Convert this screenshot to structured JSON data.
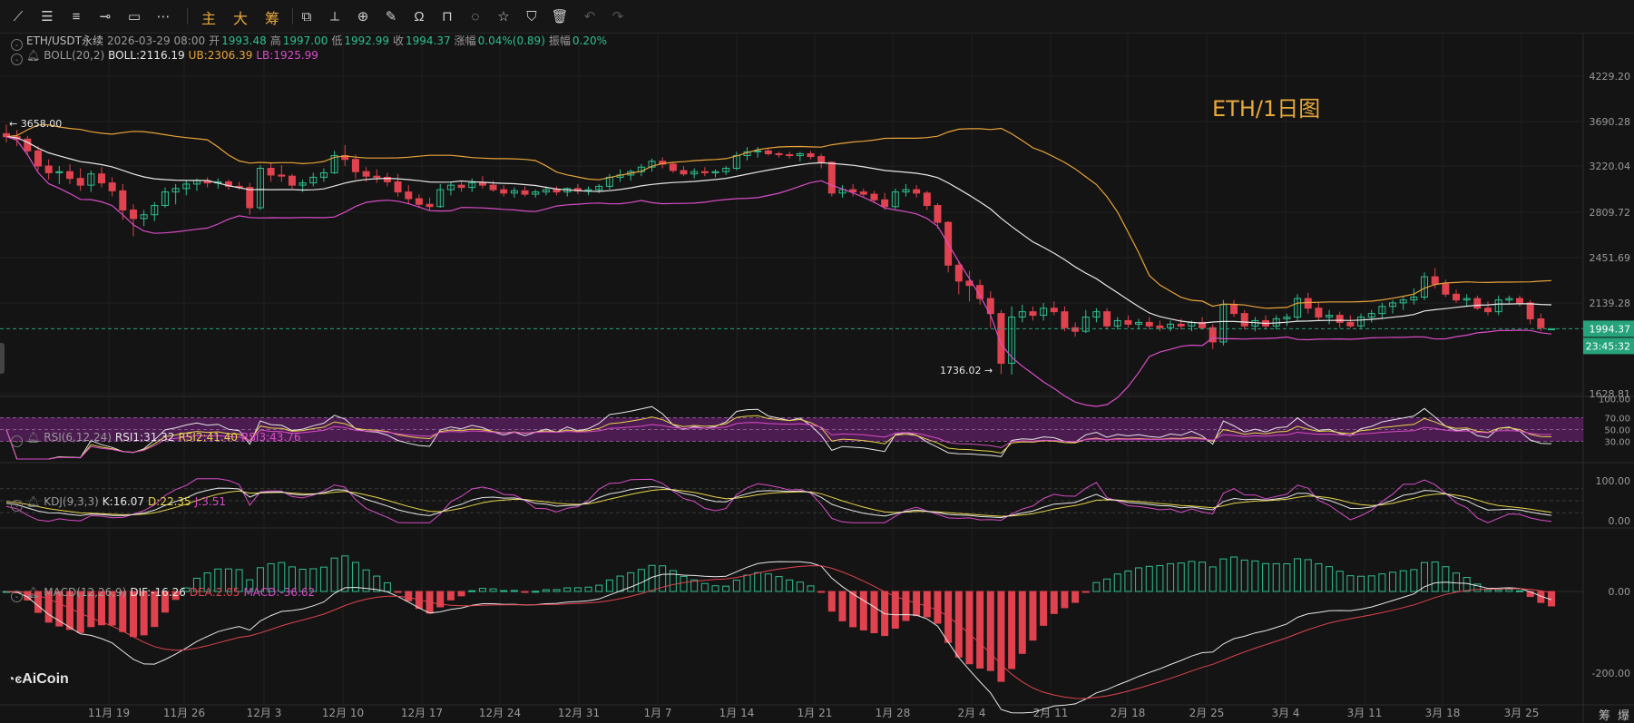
{
  "toolbar": {
    "left_icons": [
      "trend-line-icon",
      "horizontal-lines-icon",
      "parallel-lines-icon",
      "ray-icon",
      "rectangle-icon",
      "more-tools-icon"
    ],
    "text_buttons": [
      "主",
      "大",
      "筹"
    ],
    "right_icons": [
      "replay-icon",
      "measure-icon",
      "alert-add-icon",
      "brush-icon",
      "magnet-icon",
      "lock-icon",
      "hide-drawings-icon",
      "favorite-icon",
      "filter-icon",
      "trash-icon",
      "undo-icon",
      "redo-icon"
    ]
  },
  "header": {
    "symbol": "ETH/USDT永续",
    "datetime": "2026-03-29 08:00",
    "open_label": "开",
    "open": "1993.48",
    "high_label": "高",
    "high": "1997.00",
    "low_label": "低",
    "low": "1992.99",
    "close_label": "收",
    "close": "1994.37",
    "change_label": "涨幅",
    "change": "0.04%(0.89)",
    "amp_label": "振幅",
    "amp": "0.20%"
  },
  "boll": {
    "name": "BOLL(20,2)",
    "mid": "BOLL:2116.19",
    "ub": "UB:2306.39",
    "lb": "LB:1925.99"
  },
  "rsi": {
    "name": "RSI(6,12,24)",
    "r1": "RSI1:31.32",
    "r2": "RSI2:41.40",
    "r3": "RSI3:43.76"
  },
  "kdj": {
    "name": "KDJ(9,3,3)",
    "k": "K:16.07",
    "d": "D:22.35",
    "j": "J:3.51"
  },
  "macd": {
    "name": "MACD(12,26,9)",
    "dif": "DIF:-16.26",
    "dea": "DEA:2.05",
    "macd": "MACD:-36.62"
  },
  "watermark": "ETH/1日图",
  "logo": "AiCoin",
  "corner_buttons": [
    "筹",
    "爆"
  ],
  "colors": {
    "up": "#2fbf8f",
    "down": "#e0434f",
    "boll_mid": "#e6e6e6",
    "boll_ub": "#e8a33a",
    "boll_lb": "#d94cc8",
    "rsi1": "#e6e6e6",
    "rsi2": "#e8d44a",
    "rsi3": "#d94cc8",
    "price_tag": "#26a37a"
  },
  "chart_data": {
    "type": "candlestick",
    "price_axis_ticks": [
      "4229.20",
      "3690.28",
      "3220.04",
      "2809.72",
      "2451.69",
      "2139.28",
      "1628.81"
    ],
    "price_tag": "1994.37",
    "countdown": "23:45:32",
    "high_marker": "3658.00",
    "low_marker": "1736.02",
    "rsi_ticks": [
      "100.00",
      "70.00",
      "50.00",
      "30.00"
    ],
    "kdj_ticks": [
      "100.00",
      "0.00"
    ],
    "macd_ticks": [
      "0.00",
      "-200.00"
    ],
    "x_labels": [
      "11月 19",
      "11月 26",
      "12月 3",
      "12月 10",
      "12月 17",
      "12月 24",
      "12月 31",
      "1月 7",
      "1月 14",
      "1月 21",
      "1月 28",
      "2月 4",
      "2月 11",
      "2月 18",
      "2月 25",
      "3月 4",
      "3月 11",
      "3月 18",
      "3月 25"
    ],
    "candles_ohlc": [
      [
        3562,
        3658,
        3470,
        3530
      ],
      [
        3530,
        3600,
        3430,
        3505
      ],
      [
        3505,
        3540,
        3330,
        3380
      ],
      [
        3380,
        3430,
        3180,
        3220
      ],
      [
        3220,
        3290,
        3100,
        3160
      ],
      [
        3160,
        3220,
        3060,
        3170
      ],
      [
        3170,
        3240,
        3060,
        3110
      ],
      [
        3110,
        3200,
        3000,
        3050
      ],
      [
        3050,
        3180,
        2990,
        3150
      ],
      [
        3150,
        3210,
        3030,
        3070
      ],
      [
        3070,
        3120,
        2950,
        3000
      ],
      [
        3000,
        3060,
        2750,
        2830
      ],
      [
        2830,
        2880,
        2620,
        2760
      ],
      [
        2760,
        2830,
        2700,
        2790
      ],
      [
        2790,
        2900,
        2740,
        2870
      ],
      [
        2870,
        3030,
        2850,
        2990
      ],
      [
        2990,
        3060,
        2880,
        3020
      ],
      [
        3020,
        3090,
        2960,
        3060
      ],
      [
        3060,
        3110,
        3000,
        3090
      ],
      [
        3090,
        3120,
        3030,
        3070
      ],
      [
        3070,
        3110,
        3020,
        3080
      ],
      [
        3080,
        3100,
        3010,
        3040
      ],
      [
        3040,
        3080,
        3010,
        3030
      ],
      [
        3030,
        3070,
        2790,
        2850
      ],
      [
        2850,
        3230,
        2830,
        3200
      ],
      [
        3200,
        3260,
        3080,
        3140
      ],
      [
        3140,
        3230,
        3080,
        3130
      ],
      [
        3130,
        3150,
        3020,
        3050
      ],
      [
        3050,
        3100,
        2990,
        3070
      ],
      [
        3070,
        3160,
        3040,
        3120
      ],
      [
        3120,
        3200,
        3080,
        3160
      ],
      [
        3160,
        3380,
        3150,
        3330
      ],
      [
        3330,
        3440,
        3220,
        3290
      ],
      [
        3290,
        3340,
        3110,
        3170
      ],
      [
        3170,
        3210,
        3080,
        3130
      ],
      [
        3130,
        3190,
        3070,
        3120
      ],
      [
        3120,
        3160,
        3040,
        3080
      ],
      [
        3080,
        3150,
        2950,
        2990
      ],
      [
        2990,
        3050,
        2880,
        2930
      ],
      [
        2930,
        2970,
        2850,
        2880
      ],
      [
        2880,
        2940,
        2820,
        2860
      ],
      [
        2860,
        3060,
        2850,
        3010
      ],
      [
        3010,
        3080,
        2960,
        3050
      ],
      [
        3050,
        3090,
        2990,
        3030
      ],
      [
        3030,
        3110,
        2990,
        3070
      ],
      [
        3070,
        3130,
        3020,
        3050
      ],
      [
        3050,
        3090,
        2990,
        3010
      ],
      [
        3010,
        3050,
        2950,
        2980
      ],
      [
        2980,
        3030,
        2940,
        3000
      ],
      [
        3000,
        3040,
        2950,
        2970
      ],
      [
        2970,
        3010,
        2940,
        2990
      ],
      [
        2990,
        3040,
        2960,
        3010
      ],
      [
        3010,
        3040,
        2960,
        2990
      ],
      [
        2990,
        3030,
        2950,
        3020
      ],
      [
        3020,
        3060,
        2970,
        3000
      ],
      [
        3000,
        3040,
        2960,
        3010
      ],
      [
        3010,
        3060,
        2980,
        3040
      ],
      [
        3040,
        3150,
        3010,
        3120
      ],
      [
        3120,
        3190,
        3080,
        3140
      ],
      [
        3140,
        3190,
        3090,
        3170
      ],
      [
        3170,
        3240,
        3130,
        3210
      ],
      [
        3210,
        3300,
        3170,
        3270
      ],
      [
        3270,
        3310,
        3200,
        3240
      ],
      [
        3240,
        3260,
        3160,
        3180
      ],
      [
        3180,
        3220,
        3130,
        3150
      ],
      [
        3150,
        3200,
        3110,
        3170
      ],
      [
        3170,
        3210,
        3130,
        3160
      ],
      [
        3160,
        3190,
        3120,
        3170
      ],
      [
        3170,
        3220,
        3140,
        3200
      ],
      [
        3200,
        3370,
        3180,
        3330
      ],
      [
        3330,
        3420,
        3280,
        3370
      ],
      [
        3370,
        3420,
        3310,
        3380
      ],
      [
        3380,
        3410,
        3330,
        3350
      ],
      [
        3350,
        3370,
        3310,
        3340
      ],
      [
        3340,
        3370,
        3300,
        3330
      ],
      [
        3330,
        3370,
        3270,
        3350
      ],
      [
        3350,
        3380,
        3290,
        3320
      ],
      [
        3320,
        3350,
        3200,
        3260
      ],
      [
        3260,
        3270,
        2950,
        2980
      ],
      [
        2980,
        3050,
        2940,
        3010
      ],
      [
        3010,
        3060,
        2950,
        2990
      ],
      [
        2990,
        3020,
        2940,
        2970
      ],
      [
        2970,
        3000,
        2890,
        2920
      ],
      [
        2920,
        2980,
        2830,
        2860
      ],
      [
        2860,
        3020,
        2840,
        2990
      ],
      [
        2990,
        3060,
        2950,
        3010
      ],
      [
        3010,
        3050,
        2940,
        2980
      ],
      [
        2980,
        3000,
        2830,
        2870
      ],
      [
        2870,
        2890,
        2680,
        2730
      ],
      [
        2730,
        2740,
        2350,
        2400
      ],
      [
        2400,
        2430,
        2200,
        2290
      ],
      [
        2290,
        2360,
        2150,
        2260
      ],
      [
        2260,
        2300,
        2130,
        2170
      ],
      [
        2170,
        2220,
        2000,
        2080
      ],
      [
        2080,
        2100,
        1740,
        1800
      ],
      [
        1800,
        2120,
        1736,
        2060
      ],
      [
        2060,
        2130,
        2030,
        2090
      ],
      [
        2090,
        2120,
        2040,
        2070
      ],
      [
        2070,
        2140,
        2040,
        2110
      ],
      [
        2110,
        2150,
        2070,
        2090
      ],
      [
        2090,
        2120,
        1980,
        2000
      ],
      [
        2000,
        2030,
        1950,
        1980
      ],
      [
        1980,
        2100,
        1970,
        2060
      ],
      [
        2060,
        2110,
        2030,
        2090
      ],
      [
        2090,
        2110,
        1990,
        2010
      ],
      [
        2010,
        2060,
        1990,
        2040
      ],
      [
        2040,
        2070,
        2000,
        2020
      ],
      [
        2020,
        2050,
        1990,
        2030
      ],
      [
        2030,
        2060,
        1990,
        2010
      ],
      [
        2010,
        2040,
        1980,
        2000
      ],
      [
        2000,
        2040,
        1980,
        2020
      ],
      [
        2020,
        2050,
        1990,
        2010
      ],
      [
        2010,
        2040,
        1980,
        2030
      ],
      [
        2030,
        2060,
        1990,
        2000
      ],
      [
        2000,
        2020,
        1880,
        1920
      ],
      [
        1920,
        2160,
        1900,
        2130
      ],
      [
        2130,
        2160,
        2060,
        2080
      ],
      [
        2080,
        2100,
        1990,
        2010
      ],
      [
        2010,
        2060,
        1980,
        2040
      ],
      [
        2040,
        2070,
        1990,
        2010
      ],
      [
        2010,
        2070,
        1990,
        2050
      ],
      [
        2050,
        2080,
        2010,
        2060
      ],
      [
        2060,
        2200,
        2040,
        2170
      ],
      [
        2170,
        2210,
        2080,
        2110
      ],
      [
        2110,
        2140,
        2040,
        2060
      ],
      [
        2060,
        2100,
        2020,
        2070
      ],
      [
        2070,
        2090,
        2000,
        2030
      ],
      [
        2030,
        2070,
        2000,
        2010
      ],
      [
        2010,
        2080,
        1990,
        2060
      ],
      [
        2060,
        2100,
        2030,
        2080
      ],
      [
        2080,
        2140,
        2050,
        2120
      ],
      [
        2120,
        2160,
        2080,
        2140
      ],
      [
        2140,
        2180,
        2100,
        2160
      ],
      [
        2160,
        2240,
        2130,
        2180
      ],
      [
        2180,
        2350,
        2160,
        2320
      ],
      [
        2320,
        2380,
        2240,
        2270
      ],
      [
        2270,
        2300,
        2180,
        2200
      ],
      [
        2200,
        2230,
        2140,
        2160
      ],
      [
        2160,
        2200,
        2120,
        2170
      ],
      [
        2170,
        2190,
        2100,
        2110
      ],
      [
        2110,
        2150,
        2070,
        2090
      ],
      [
        2090,
        2190,
        2070,
        2160
      ],
      [
        2160,
        2190,
        2130,
        2170
      ],
      [
        2170,
        2190,
        2120,
        2140
      ],
      [
        2140,
        2160,
        2020,
        2050
      ],
      [
        2050,
        2080,
        1980,
        2000
      ],
      [
        1993,
        1997,
        1993,
        1994
      ]
    ]
  }
}
